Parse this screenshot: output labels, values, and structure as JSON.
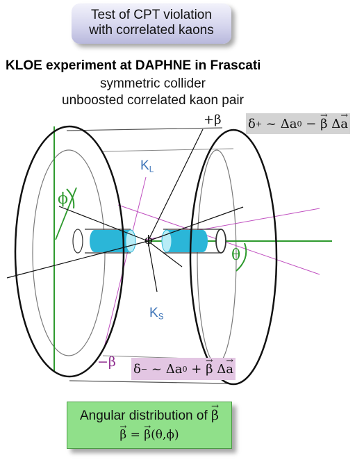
{
  "banner": {
    "line1": "Test of CPT violation",
    "line2": "with correlated kaons"
  },
  "heading": "KLOE experiment at DAPHNE in Frascati",
  "subtitle1": "symmetric collider",
  "subtitle2": "unboosted correlated kaon pair",
  "labels": {
    "beta_plus": "+β",
    "beta_minus": "−β",
    "kl_main": "K",
    "kl_sub": "L",
    "ks_main": "K",
    "ks_sub": "S",
    "phi_center": "ϕ",
    "phi_angle": "ϕ",
    "theta_angle": "θ"
  },
  "formula_plus": {
    "delta": "δ",
    "sub": "+",
    "rest1": " ~ Δa",
    "sub0": "0",
    "op": " − ",
    "beta": "β",
    "delta_a": " Δ",
    "a": "a"
  },
  "formula_minus": {
    "delta": "δ",
    "sub": "−",
    "rest1": " ~ Δa",
    "sub0": "0",
    "op": " + ",
    "beta": "β",
    "delta_a": " Δ",
    "a": "a"
  },
  "angular_box": {
    "line1": "Angular distribution of ",
    "line1_beta": "β",
    "line2_beta1": "β",
    "line2_eq": " = ",
    "line2_beta2": "β",
    "line2_args": "(θ,ϕ)"
  },
  "colors": {
    "beam": "#2bb6d8",
    "kaon_label": "#3d74b8",
    "beta_minus_line": "#c050c0",
    "axis_green": "#2e9a2e",
    "formula_plus_bg": "#d3d3d3",
    "formula_minus_bg": "#e3c6e3",
    "angular_box_bg": "#90e08a"
  }
}
